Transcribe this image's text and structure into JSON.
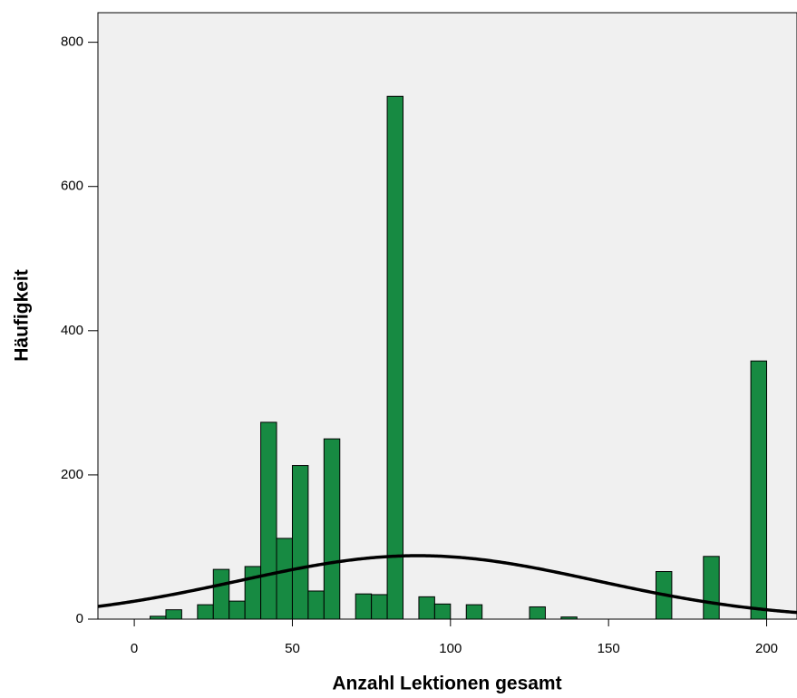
{
  "chart_data": {
    "type": "histogram",
    "xlabel": "Anzahl Lektionen gesamt",
    "ylabel": "Häufigkeit",
    "bins": [
      5,
      10,
      15,
      20,
      25,
      30,
      35,
      40,
      45,
      50,
      55,
      60,
      65,
      70,
      75,
      80,
      85,
      90,
      95,
      100,
      105,
      110,
      115,
      120,
      125,
      130,
      135,
      140,
      145,
      150,
      155,
      160,
      165,
      170,
      175,
      180,
      185,
      190,
      195,
      200
    ],
    "values": [
      4,
      13,
      0,
      20,
      69,
      25,
      73,
      273,
      112,
      213,
      39,
      250,
      0,
      35,
      34,
      725,
      0,
      31,
      21,
      0,
      20,
      0,
      0,
      0,
      17,
      0,
      3,
      0,
      0,
      0,
      0,
      0,
      66,
      0,
      0,
      87,
      0,
      0,
      358
    ],
    "color": "#178a42",
    "xlim": [
      -11.5,
      209.6
    ],
    "ylim": [
      0,
      841
    ],
    "xticks": [
      0,
      50,
      100,
      150,
      200
    ],
    "yticks": [
      0,
      200,
      400,
      600,
      800
    ],
    "normal_curve": {
      "mean": 89.7,
      "std": 56.4
    }
  }
}
